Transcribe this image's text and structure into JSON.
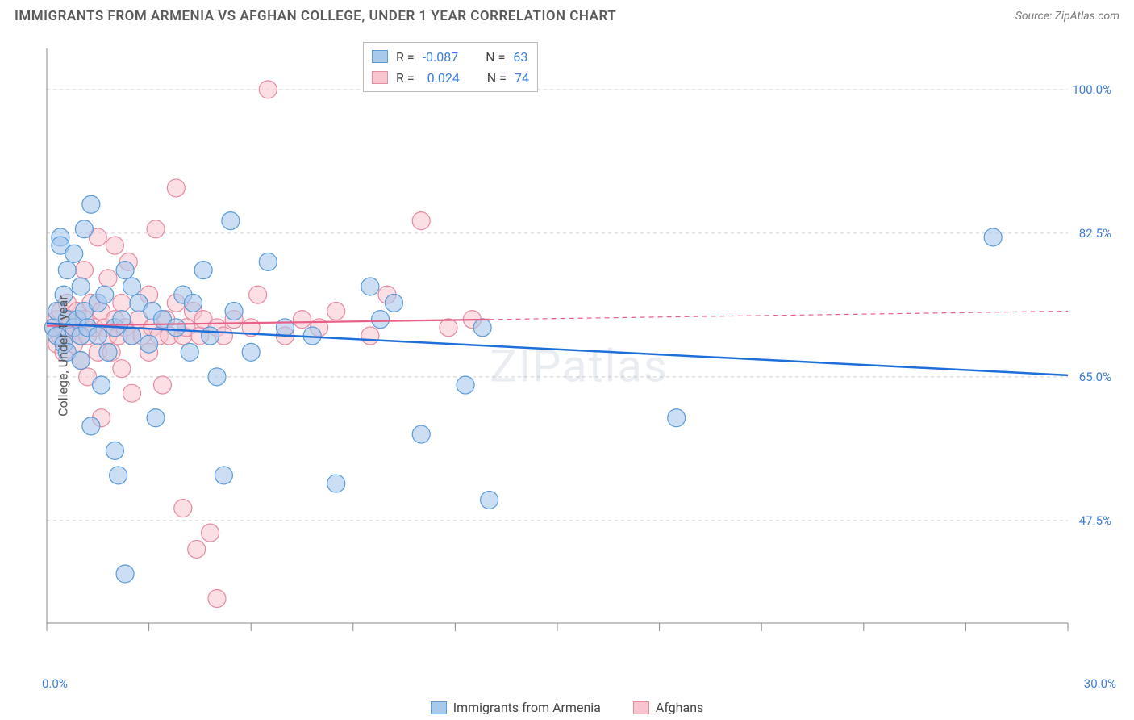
{
  "header": {
    "title": "IMMIGRANTS FROM ARMENIA VS AFGHAN COLLEGE, UNDER 1 YEAR CORRELATION CHART",
    "source": "Source: ZipAtlas.com"
  },
  "chart": {
    "type": "scatter",
    "ylabel": "College, Under 1 year",
    "watermark": "ZIPatlas",
    "background_color": "#ffffff",
    "grid_color": "#d0d0d0",
    "axis_color": "#888888",
    "xlim": [
      0,
      30
    ],
    "ylim": [
      35,
      105
    ],
    "x_ticks": [
      0,
      3,
      6,
      9,
      12,
      15,
      18,
      21,
      24,
      27,
      30
    ],
    "x_tick_labels": {
      "0": "0.0%",
      "30": "30.0%"
    },
    "y_grid": [
      47.5,
      65.0,
      82.5,
      100.0
    ],
    "y_tick_labels": [
      "47.5%",
      "65.0%",
      "82.5%",
      "100.0%"
    ],
    "marker_radius": 11,
    "series": [
      {
        "name": "Immigrants from Armenia",
        "color_fill": "#a8c8ec",
        "color_stroke": "#5a9bd8",
        "R": "-0.087",
        "N": "63",
        "trend": {
          "x1": 0,
          "y1": 71.5,
          "x2": 30,
          "y2": 65.2,
          "solid_until_x": 30
        },
        "points": [
          [
            0.2,
            71
          ],
          [
            0.3,
            73
          ],
          [
            0.3,
            70
          ],
          [
            0.4,
            82
          ],
          [
            0.4,
            81
          ],
          [
            0.5,
            69
          ],
          [
            0.5,
            75
          ],
          [
            0.6,
            78
          ],
          [
            0.6,
            72
          ],
          [
            0.6,
            68
          ],
          [
            0.8,
            71
          ],
          [
            0.8,
            80
          ],
          [
            0.9,
            72
          ],
          [
            1.0,
            70
          ],
          [
            1.0,
            76
          ],
          [
            1.0,
            67
          ],
          [
            1.1,
            73
          ],
          [
            1.1,
            83
          ],
          [
            1.2,
            71
          ],
          [
            1.3,
            59
          ],
          [
            1.3,
            86
          ],
          [
            1.5,
            70
          ],
          [
            1.5,
            74
          ],
          [
            1.6,
            64
          ],
          [
            1.7,
            75
          ],
          [
            1.8,
            68
          ],
          [
            2.0,
            71
          ],
          [
            2.0,
            56
          ],
          [
            2.1,
            53
          ],
          [
            2.2,
            72
          ],
          [
            2.3,
            41
          ],
          [
            2.3,
            78
          ],
          [
            2.5,
            70
          ],
          [
            2.5,
            76
          ],
          [
            2.7,
            74
          ],
          [
            3.0,
            69
          ],
          [
            3.1,
            73
          ],
          [
            3.2,
            60
          ],
          [
            3.4,
            72
          ],
          [
            3.8,
            71
          ],
          [
            4.0,
            75
          ],
          [
            4.2,
            68
          ],
          [
            4.3,
            74
          ],
          [
            4.6,
            78
          ],
          [
            4.8,
            70
          ],
          [
            5.0,
            65
          ],
          [
            5.2,
            53
          ],
          [
            5.4,
            84
          ],
          [
            5.5,
            73
          ],
          [
            6.0,
            68
          ],
          [
            6.5,
            79
          ],
          [
            7.0,
            71
          ],
          [
            7.8,
            70
          ],
          [
            8.5,
            52
          ],
          [
            9.5,
            76
          ],
          [
            9.8,
            72
          ],
          [
            10.2,
            74
          ],
          [
            11.0,
            58
          ],
          [
            12.3,
            64
          ],
          [
            12.8,
            71
          ],
          [
            13.0,
            50
          ],
          [
            18.5,
            60
          ],
          [
            27.8,
            82
          ]
        ]
      },
      {
        "name": "Afghans",
        "color_fill": "#f8c4ce",
        "color_stroke": "#e88aa0",
        "R": "0.024",
        "N": "74",
        "trend": {
          "x1": 0,
          "y1": 71.2,
          "x2": 30,
          "y2": 73.0,
          "solid_until_x": 13
        },
        "points": [
          [
            0.2,
            71
          ],
          [
            0.3,
            69
          ],
          [
            0.3,
            72
          ],
          [
            0.4,
            70
          ],
          [
            0.4,
            73
          ],
          [
            0.5,
            68
          ],
          [
            0.5,
            71
          ],
          [
            0.6,
            74
          ],
          [
            0.6,
            70
          ],
          [
            0.7,
            72
          ],
          [
            0.8,
            69
          ],
          [
            0.8,
            71
          ],
          [
            0.9,
            73
          ],
          [
            1.0,
            70
          ],
          [
            1.0,
            67
          ],
          [
            1.1,
            72
          ],
          [
            1.1,
            78
          ],
          [
            1.2,
            70
          ],
          [
            1.2,
            65
          ],
          [
            1.3,
            74
          ],
          [
            1.4,
            71
          ],
          [
            1.5,
            68
          ],
          [
            1.5,
            82
          ],
          [
            1.6,
            73
          ],
          [
            1.6,
            60
          ],
          [
            1.7,
            71
          ],
          [
            1.8,
            77
          ],
          [
            1.8,
            70
          ],
          [
            1.9,
            68
          ],
          [
            2.0,
            72
          ],
          [
            2.0,
            81
          ],
          [
            2.1,
            70
          ],
          [
            2.2,
            74
          ],
          [
            2.2,
            66
          ],
          [
            2.3,
            71
          ],
          [
            2.4,
            79
          ],
          [
            2.5,
            70
          ],
          [
            2.5,
            63
          ],
          [
            2.7,
            72
          ],
          [
            2.8,
            70
          ],
          [
            3.0,
            75
          ],
          [
            3.0,
            68
          ],
          [
            3.1,
            71
          ],
          [
            3.2,
            83
          ],
          [
            3.3,
            70
          ],
          [
            3.4,
            64
          ],
          [
            3.5,
            72
          ],
          [
            3.6,
            70
          ],
          [
            3.8,
            74
          ],
          [
            3.8,
            88
          ],
          [
            4.0,
            70
          ],
          [
            4.0,
            49
          ],
          [
            4.1,
            71
          ],
          [
            4.3,
            73
          ],
          [
            4.4,
            44
          ],
          [
            4.5,
            70
          ],
          [
            4.6,
            72
          ],
          [
            4.8,
            46
          ],
          [
            5.0,
            71
          ],
          [
            5.0,
            38
          ],
          [
            5.2,
            70
          ],
          [
            5.5,
            72
          ],
          [
            6.0,
            71
          ],
          [
            6.2,
            75
          ],
          [
            6.5,
            100
          ],
          [
            7.0,
            70
          ],
          [
            7.5,
            72
          ],
          [
            8.0,
            71
          ],
          [
            8.5,
            73
          ],
          [
            9.5,
            70
          ],
          [
            10.0,
            75
          ],
          [
            11.0,
            84
          ],
          [
            11.8,
            71
          ],
          [
            12.5,
            72
          ]
        ]
      }
    ],
    "legend_bottom": [
      {
        "label": "Immigrants from Armenia",
        "swatch": "blue"
      },
      {
        "label": "Afghans",
        "swatch": "pink"
      }
    ],
    "legend_top_labels": {
      "R": "R =",
      "N": "N ="
    }
  }
}
